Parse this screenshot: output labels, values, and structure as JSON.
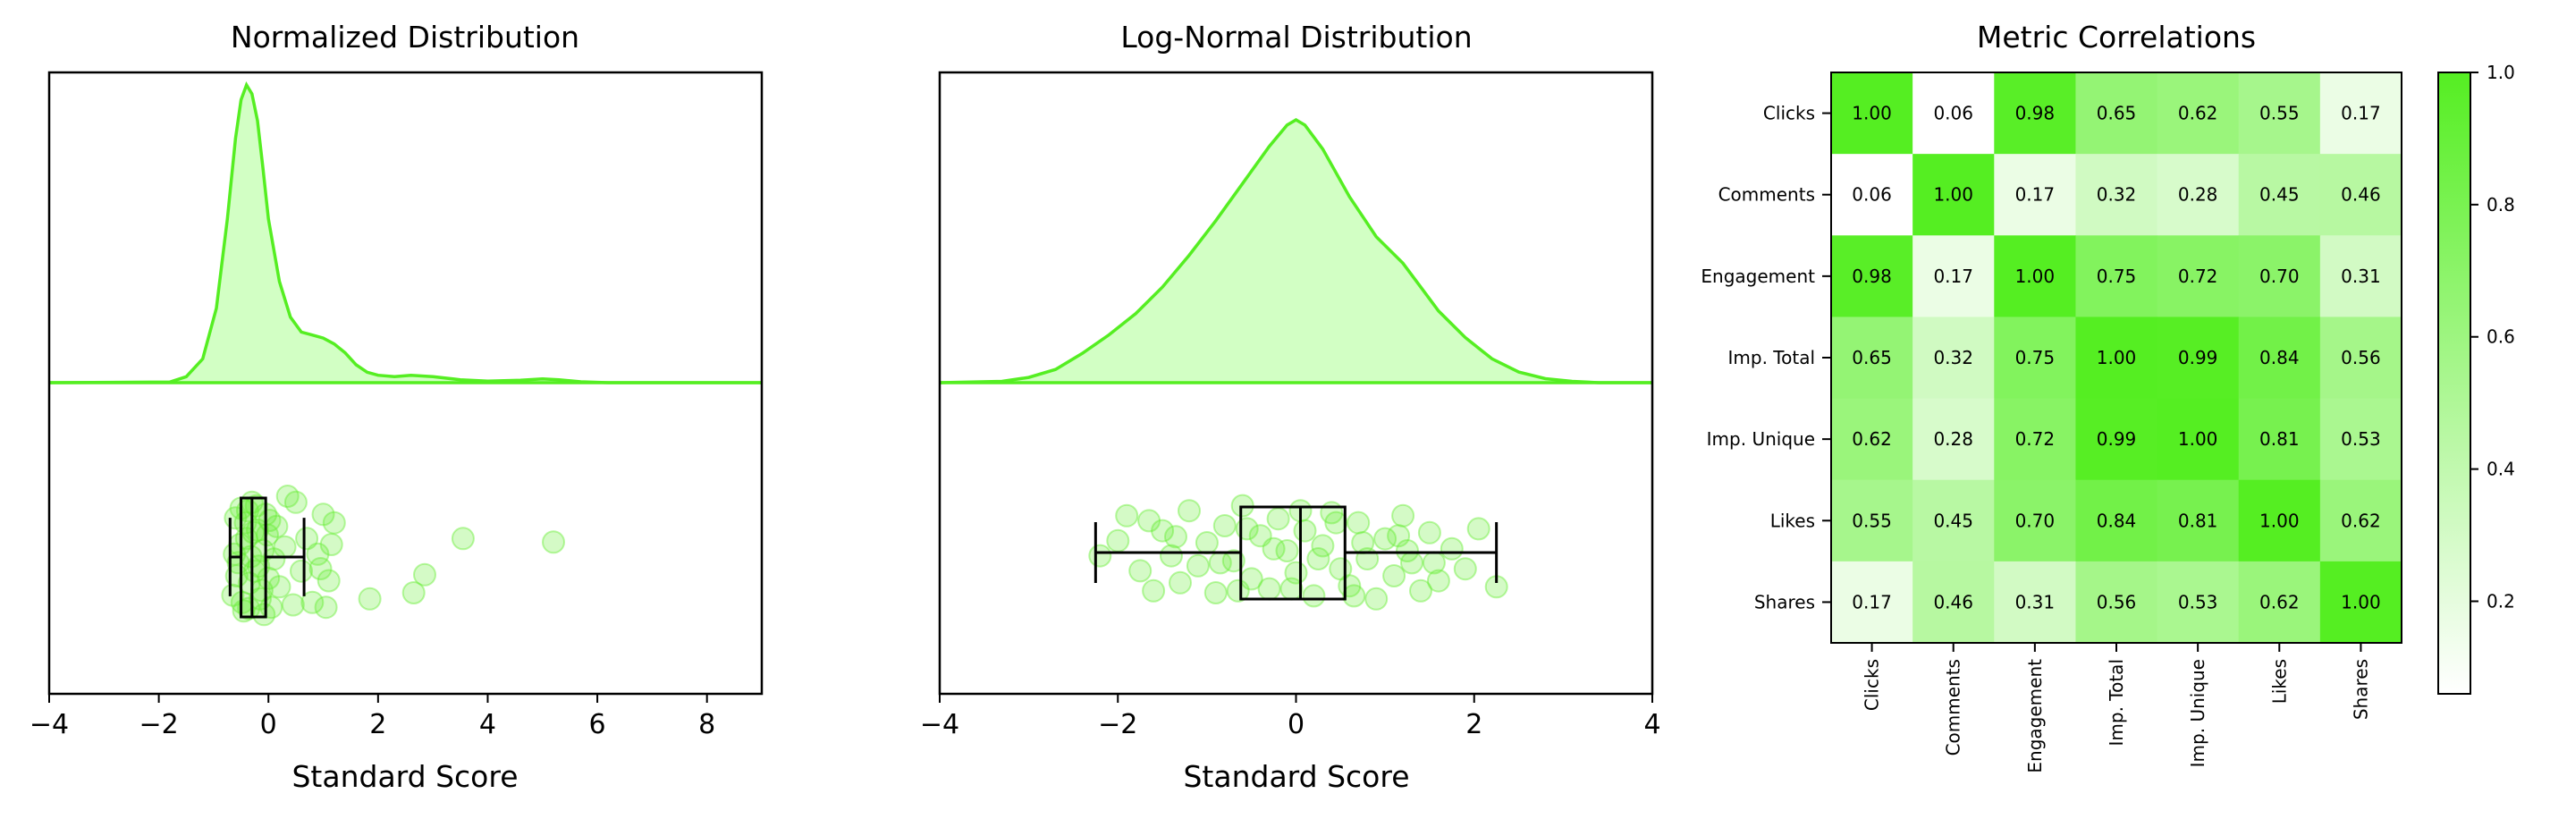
{
  "colors": {
    "accent": "#55ee22",
    "fill": "#d2ffc4",
    "point": "#66ee33",
    "box": "#000000"
  },
  "chart_data": [
    {
      "type": "area",
      "title": "Normalized Distribution",
      "xlabel": "Standard Score",
      "xlim": [
        -4,
        9
      ],
      "xticks": [
        -4,
        -2,
        0,
        2,
        4,
        6,
        8
      ],
      "kde": {
        "x": [
          -4,
          -1.8,
          -1.5,
          -1.2,
          -0.95,
          -0.75,
          -0.6,
          -0.5,
          -0.4,
          -0.3,
          -0.2,
          -0.1,
          0.0,
          0.2,
          0.4,
          0.6,
          0.8,
          1.0,
          1.2,
          1.4,
          1.6,
          1.8,
          2.0,
          2.3,
          2.6,
          3.0,
          3.5,
          4.0,
          4.6,
          5.0,
          5.3,
          5.7,
          6.2,
          9.0
        ],
        "y": [
          0,
          0.002,
          0.02,
          0.08,
          0.25,
          0.55,
          0.82,
          0.95,
          1.0,
          0.97,
          0.88,
          0.72,
          0.55,
          0.34,
          0.22,
          0.17,
          0.16,
          0.15,
          0.13,
          0.1,
          0.06,
          0.035,
          0.025,
          0.02,
          0.025,
          0.02,
          0.01,
          0.005,
          0.008,
          0.013,
          0.01,
          0.003,
          0.0,
          0.0
        ]
      },
      "box": {
        "min": -0.7,
        "q1": -0.5,
        "median": -0.3,
        "q3": -0.05,
        "max": 0.65
      },
      "points": [
        [
          -0.6,
          0.18
        ],
        [
          -0.55,
          0.55
        ],
        [
          -0.5,
          0.1
        ],
        [
          -0.45,
          0.95
        ],
        [
          -0.4,
          0.35
        ],
        [
          -0.35,
          0.72
        ],
        [
          -0.3,
          0.05
        ],
        [
          -0.25,
          0.62
        ],
        [
          -0.2,
          0.28
        ],
        [
          -0.15,
          0.85
        ],
        [
          -0.1,
          0.45
        ],
        [
          -0.05,
          0.15
        ],
        [
          0.0,
          0.68
        ],
        [
          0.05,
          0.92
        ],
        [
          -0.65,
          0.82
        ],
        [
          -0.52,
          0.4
        ],
        [
          -0.42,
          0.22
        ],
        [
          -0.32,
          0.5
        ],
        [
          -0.22,
          0.08
        ],
        [
          -0.12,
          0.78
        ],
        [
          -0.02,
          0.32
        ],
        [
          -0.58,
          0.66
        ],
        [
          -0.48,
          0.88
        ],
        [
          -0.38,
          0.12
        ],
        [
          -0.28,
          0.3
        ],
        [
          -0.18,
          0.58
        ],
        [
          -0.08,
          0.98
        ],
        [
          0.02,
          0.2
        ],
        [
          -0.62,
          0.48
        ],
        [
          -0.36,
          0.93
        ],
        [
          0.1,
          0.52
        ],
        [
          0.15,
          0.25
        ],
        [
          0.2,
          0.75
        ],
        [
          0.3,
          0.42
        ],
        [
          0.45,
          0.9
        ],
        [
          0.5,
          0.05
        ],
        [
          0.6,
          0.62
        ],
        [
          0.7,
          0.35
        ],
        [
          0.8,
          0.88
        ],
        [
          0.9,
          0.48
        ],
        [
          1.0,
          0.15
        ],
        [
          1.05,
          0.92
        ],
        [
          1.1,
          0.7
        ],
        [
          1.15,
          0.4
        ],
        [
          1.2,
          0.22
        ],
        [
          0.35,
          0.0
        ],
        [
          0.95,
          0.6
        ],
        [
          1.85,
          0.85
        ],
        [
          2.65,
          0.8
        ],
        [
          2.85,
          0.65
        ],
        [
          3.55,
          0.35
        ],
        [
          5.2,
          0.38
        ]
      ]
    },
    {
      "type": "area",
      "title": "Log-Normal Distribution",
      "xlabel": "Standard Score",
      "xlim": [
        -4,
        4
      ],
      "xticks": [
        -4,
        -2,
        0,
        2,
        4
      ],
      "kde": {
        "x": [
          -4,
          -3.3,
          -3.0,
          -2.7,
          -2.4,
          -2.1,
          -1.8,
          -1.5,
          -1.2,
          -0.9,
          -0.6,
          -0.3,
          -0.1,
          0.0,
          0.1,
          0.3,
          0.6,
          0.9,
          1.2,
          1.4,
          1.6,
          1.9,
          2.2,
          2.5,
          2.8,
          3.1,
          3.4,
          4.0
        ],
        "y": [
          0,
          0.005,
          0.02,
          0.05,
          0.11,
          0.18,
          0.26,
          0.36,
          0.48,
          0.61,
          0.75,
          0.89,
          0.97,
          0.99,
          0.97,
          0.88,
          0.7,
          0.55,
          0.45,
          0.36,
          0.27,
          0.17,
          0.09,
          0.04,
          0.015,
          0.005,
          0.0,
          0.0
        ]
      },
      "box": {
        "min": -2.25,
        "q1": -0.62,
        "median": 0.05,
        "q3": 0.55,
        "max": 2.25
      },
      "points": [
        [
          -2.2,
          0.55
        ],
        [
          -2.0,
          0.4
        ],
        [
          -1.9,
          0.15
        ],
        [
          -1.75,
          0.7
        ],
        [
          -1.6,
          0.9
        ],
        [
          -1.5,
          0.3
        ],
        [
          -1.4,
          0.55
        ],
        [
          -1.3,
          0.82
        ],
        [
          -1.2,
          0.1
        ],
        [
          -1.1,
          0.65
        ],
        [
          -1.0,
          0.42
        ],
        [
          -0.9,
          0.92
        ],
        [
          -0.8,
          0.25
        ],
        [
          -0.7,
          0.6
        ],
        [
          -0.6,
          0.05
        ],
        [
          -0.5,
          0.78
        ],
        [
          -0.4,
          0.35
        ],
        [
          -0.3,
          0.88
        ],
        [
          -0.2,
          0.18
        ],
        [
          -0.1,
          0.5
        ],
        [
          0.0,
          0.72
        ],
        [
          0.1,
          0.3
        ],
        [
          0.2,
          0.95
        ],
        [
          0.3,
          0.45
        ],
        [
          0.4,
          0.12
        ],
        [
          0.5,
          0.68
        ],
        [
          0.6,
          0.85
        ],
        [
          0.7,
          0.22
        ],
        [
          0.8,
          0.58
        ],
        [
          0.9,
          0.98
        ],
        [
          1.0,
          0.38
        ],
        [
          1.1,
          0.75
        ],
        [
          1.2,
          0.15
        ],
        [
          1.3,
          0.62
        ],
        [
          1.4,
          0.9
        ],
        [
          1.5,
          0.32
        ],
        [
          1.6,
          0.8
        ],
        [
          1.75,
          0.48
        ],
        [
          1.9,
          0.68
        ],
        [
          2.05,
          0.28
        ],
        [
          2.25,
          0.86
        ],
        [
          -1.65,
          0.2
        ],
        [
          -0.85,
          0.62
        ],
        [
          -0.25,
          0.48
        ],
        [
          0.25,
          0.58
        ],
        [
          0.75,
          0.42
        ],
        [
          1.25,
          0.5
        ],
        [
          -0.55,
          0.28
        ],
        [
          0.45,
          0.22
        ],
        [
          -1.35,
          0.36
        ],
        [
          1.15,
          0.35
        ],
        [
          0.05,
          0.1
        ],
        [
          -0.05,
          0.88
        ],
        [
          0.65,
          0.95
        ],
        [
          -0.65,
          0.9
        ],
        [
          1.55,
          0.62
        ]
      ]
    },
    {
      "type": "heatmap",
      "title": "Metric Correlations",
      "labels": [
        "Clicks",
        "Comments",
        "Engagement",
        "Imp. Total",
        "Imp. Unique",
        "Likes",
        "Shares"
      ],
      "matrix": [
        [
          1.0,
          0.06,
          0.98,
          0.65,
          0.62,
          0.55,
          0.17
        ],
        [
          0.06,
          1.0,
          0.17,
          0.32,
          0.28,
          0.45,
          0.46
        ],
        [
          0.98,
          0.17,
          1.0,
          0.75,
          0.72,
          0.7,
          0.31
        ],
        [
          0.65,
          0.32,
          0.75,
          1.0,
          0.99,
          0.84,
          0.56
        ],
        [
          0.62,
          0.28,
          0.72,
          0.99,
          1.0,
          0.81,
          0.53
        ],
        [
          0.55,
          0.45,
          0.7,
          0.84,
          0.81,
          1.0,
          0.62
        ],
        [
          0.17,
          0.46,
          0.31,
          0.56,
          0.53,
          0.62,
          1.0
        ]
      ],
      "colorbar": {
        "range": [
          0.06,
          1.0
        ],
        "ticks": [
          "0.2",
          "0.4",
          "0.6",
          "0.8",
          "1.0"
        ],
        "tick_values": [
          0.2,
          0.4,
          0.6,
          0.8,
          1.0
        ]
      }
    }
  ]
}
